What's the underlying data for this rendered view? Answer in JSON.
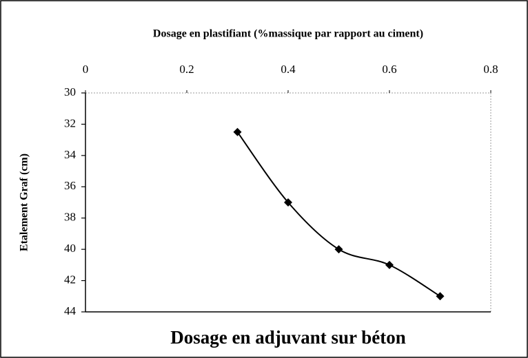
{
  "chart_data": {
    "type": "line",
    "title": "Dosage en adjuvant sur béton",
    "x_label": "Dosage en plastifiant (%massique par rapport au ciment)",
    "y_label": "Etalement Graf (cm)",
    "x": [
      0.3,
      0.4,
      0.5,
      0.6,
      0.7
    ],
    "series": [
      {
        "name": "Etalement Graf",
        "color": "#000000",
        "values": [
          32.5,
          37,
          40,
          41,
          43
        ]
      }
    ],
    "xlim": [
      0,
      0.8
    ],
    "xticks": [
      0,
      0.2,
      0.4,
      0.6,
      0.8
    ],
    "ylim": [
      30,
      44
    ],
    "yticks": [
      30,
      32,
      34,
      36,
      38,
      40,
      42,
      44
    ],
    "y_inverted": true,
    "x_axis_position": "top",
    "smooth": true,
    "marker": "diamond"
  }
}
